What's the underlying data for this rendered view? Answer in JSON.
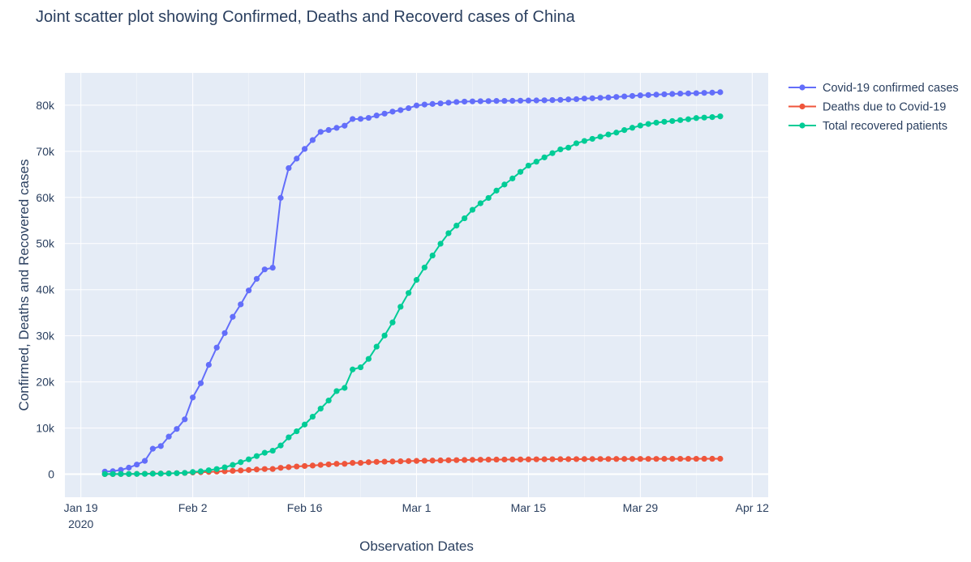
{
  "chart_data": {
    "type": "line",
    "title": "Joint scatter plot showing Confirmed, Deaths and Recoverd cases of China",
    "xlabel": "Observation Dates",
    "ylabel": "Confirmed, Deaths and Recovered cases",
    "x_start_date": "2020-01-22",
    "x_range": [
      "2020-01-17",
      "2020-04-14"
    ],
    "ylim": [
      -5000,
      87000
    ],
    "x_ticks": [
      {
        "date": "2020-01-19",
        "label": "Jan 19",
        "sublabel": "2020"
      },
      {
        "date": "2020-02-02",
        "label": "Feb 2",
        "sublabel": ""
      },
      {
        "date": "2020-02-16",
        "label": "Feb 16",
        "sublabel": ""
      },
      {
        "date": "2020-03-01",
        "label": "Mar 1",
        "sublabel": ""
      },
      {
        "date": "2020-03-15",
        "label": "Mar 15",
        "sublabel": ""
      },
      {
        "date": "2020-03-29",
        "label": "Mar 29",
        "sublabel": ""
      },
      {
        "date": "2020-04-12",
        "label": "Apr 12",
        "sublabel": ""
      }
    ],
    "y_ticks": [
      {
        "value": 0,
        "label": "0"
      },
      {
        "value": 10000,
        "label": "10k"
      },
      {
        "value": 20000,
        "label": "20k"
      },
      {
        "value": 30000,
        "label": "30k"
      },
      {
        "value": 40000,
        "label": "40k"
      },
      {
        "value": 50000,
        "label": "50k"
      },
      {
        "value": 60000,
        "label": "60k"
      },
      {
        "value": 70000,
        "label": "70k"
      },
      {
        "value": 80000,
        "label": "80k"
      }
    ],
    "grid": true,
    "legend_position": "top-right",
    "series": [
      {
        "name": "Covid-19 confirmed cases",
        "color": "#636efa",
        "values": [
          548,
          643,
          920,
          1406,
          2075,
          2877,
          5509,
          6087,
          8141,
          9802,
          11891,
          16630,
          19716,
          23707,
          27440,
          30587,
          34110,
          36814,
          39829,
          42354,
          44386,
          44759,
          59895,
          66358,
          68413,
          70513,
          72434,
          74211,
          74619,
          75077,
          75550,
          77001,
          77022,
          77241,
          77754,
          78166,
          78600,
          78928,
          79356,
          79932,
          80136,
          80261,
          80386,
          80537,
          80690,
          80770,
          80823,
          80860,
          80887,
          80921,
          80932,
          80945,
          80977,
          81003,
          81033,
          81058,
          81102,
          81156,
          81250,
          81305,
          81435,
          81498,
          81591,
          81661,
          81782,
          81897,
          81999,
          82122,
          82198,
          82279,
          82361,
          82432,
          82511,
          82543,
          82602,
          82665,
          82718,
          82809
        ]
      },
      {
        "name": "Deaths due to Covid-19",
        "color": "#ef553b",
        "values": [
          17,
          18,
          26,
          42,
          56,
          82,
          131,
          133,
          171,
          213,
          259,
          361,
          425,
          490,
          562,
          632,
          717,
          804,
          904,
          1011,
          1112,
          1117,
          1369,
          1521,
          1663,
          1766,
          1864,
          2003,
          2116,
          2238,
          2238,
          2443,
          2445,
          2595,
          2665,
          2717,
          2746,
          2790,
          2837,
          2872,
          2914,
          2947,
          2983,
          3015,
          3044,
          3072,
          3100,
          3123,
          3139,
          3161,
          3172,
          3180,
          3193,
          3203,
          3217,
          3230,
          3241,
          3249,
          3253,
          3259,
          3274,
          3274,
          3281,
          3285,
          3291,
          3296,
          3299,
          3304,
          3308,
          3309,
          3316,
          3322,
          3326,
          3330,
          3333,
          3335,
          3337,
          3339
        ]
      },
      {
        "name": "Total recovered patients",
        "color": "#00cc96",
        "values": [
          28,
          30,
          36,
          39,
          49,
          58,
          101,
          120,
          135,
          214,
          275,
          463,
          614,
          843,
          1115,
          1477,
          1999,
          2596,
          3219,
          3918,
          4636,
          5082,
          6217,
          7977,
          9298,
          10755,
          12462,
          14206,
          15962,
          18014,
          18704,
          22699,
          23170,
          24990,
          27650,
          30053,
          32898,
          36291,
          39279,
          42118,
          44810,
          47404,
          49955,
          52240,
          53888,
          55478,
          57320,
          58735,
          59882,
          61475,
          62793,
          64111,
          65541,
          66911,
          67749,
          68679,
          69601,
          70420,
          70790,
          71740,
          72244,
          72703,
          73159,
          73650,
          74051,
          74600,
          75100,
          75582,
          75923,
          76206,
          76405,
          76565,
          76760,
          76946,
          77207,
          77310,
          77410,
          77567
        ]
      }
    ]
  }
}
